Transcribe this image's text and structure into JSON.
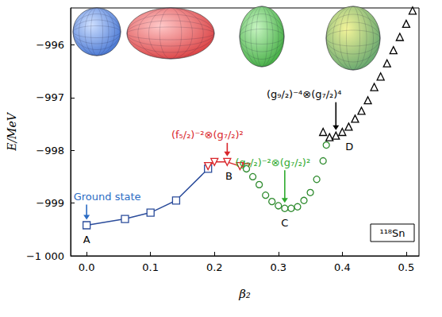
{
  "chart_data": {
    "type": "line",
    "x_label": "β₂",
    "y_label": "E/MeV",
    "xlim": [
      -0.025,
      0.52
    ],
    "ylim": [
      -1000,
      -995.3
    ],
    "xticks": [
      {
        "value": 0,
        "label": "0.0"
      },
      0.1,
      0.2,
      0.3,
      0.4,
      0.5
    ],
    "yticks": [
      {
        "value": -1000,
        "label": "−1 000"
      },
      {
        "value": -999,
        "label": "−999"
      },
      {
        "value": -998,
        "label": "−998"
      },
      {
        "value": -997,
        "label": "−997"
      },
      {
        "value": -996,
        "label": "−996"
      }
    ],
    "grid": false,
    "series": [
      {
        "color": "#2b4c9b",
        "marker": "square",
        "line_style": "solid",
        "x": [
          0,
          0.06,
          0.1,
          0.14,
          0.19
        ],
        "values": [
          -999.42,
          -999.3,
          -999.18,
          -998.95,
          -998.35
        ]
      },
      {
        "color": "#d9262b",
        "marker": "triangle-down",
        "line_style": "solid",
        "x": [
          0.19,
          0.2,
          0.22,
          0.24,
          0.25
        ],
        "values": [
          -998.3,
          -998.22,
          -998.22,
          -998.3,
          -998.32
        ]
      },
      {
        "color": "#2e8b2e",
        "marker": "circle",
        "line_style": "none",
        "x": [
          0.25,
          0.26,
          0.27,
          0.28,
          0.29,
          0.3,
          0.31,
          0.32,
          0.33,
          0.34,
          0.35,
          0.36,
          0.37,
          0.375
        ],
        "values": [
          -998.35,
          -998.5,
          -998.65,
          -998.85,
          -998.97,
          -999.05,
          -999.1,
          -999.1,
          -999.07,
          -998.95,
          -998.8,
          -998.55,
          -998.2,
          -997.9
        ]
      },
      {
        "color": "#000000",
        "marker": "triangle",
        "line_style": "none",
        "x": [
          0.37,
          0.38,
          0.39,
          0.4,
          0.41,
          0.42,
          0.43,
          0.44,
          0.45,
          0.46,
          0.47,
          0.48,
          0.49,
          0.5,
          0.51
        ],
        "values": [
          -997.65,
          -997.75,
          -997.72,
          -997.65,
          -997.55,
          -997.4,
          -997.25,
          -997.05,
          -996.8,
          -996.6,
          -996.35,
          -996.1,
          -995.85,
          -995.6,
          -995.35
        ]
      }
    ],
    "annotations": [
      {
        "text": "Ground state",
        "x": 0,
        "y": -999.42,
        "color": "#2b6cc4"
      },
      {
        "text": "(f₅/₂)⁻²⊗(g₇/₂)²",
        "x": 0.22,
        "y": -998.22,
        "color": "#d9262b"
      },
      {
        "text": "(g₉/₂)⁻²⊗(g₇/₂)²",
        "x": 0.31,
        "y": -999.1,
        "color": "#2eaa2e"
      },
      {
        "text": "(g₉/₂)⁻⁴⊗(g₇/₂)⁴",
        "x": 0.39,
        "y": -997.72,
        "color": "#000000"
      }
    ],
    "point_labels": [
      {
        "text": "A",
        "x": 0,
        "y": -999.42
      },
      {
        "text": "B",
        "x": 0.22,
        "y": -998.22
      },
      {
        "text": "C",
        "x": 0.31,
        "y": -999.1
      },
      {
        "text": "D",
        "x": 0.39,
        "y": -997.72
      }
    ],
    "inset_label": "¹¹⁸Sn"
  }
}
